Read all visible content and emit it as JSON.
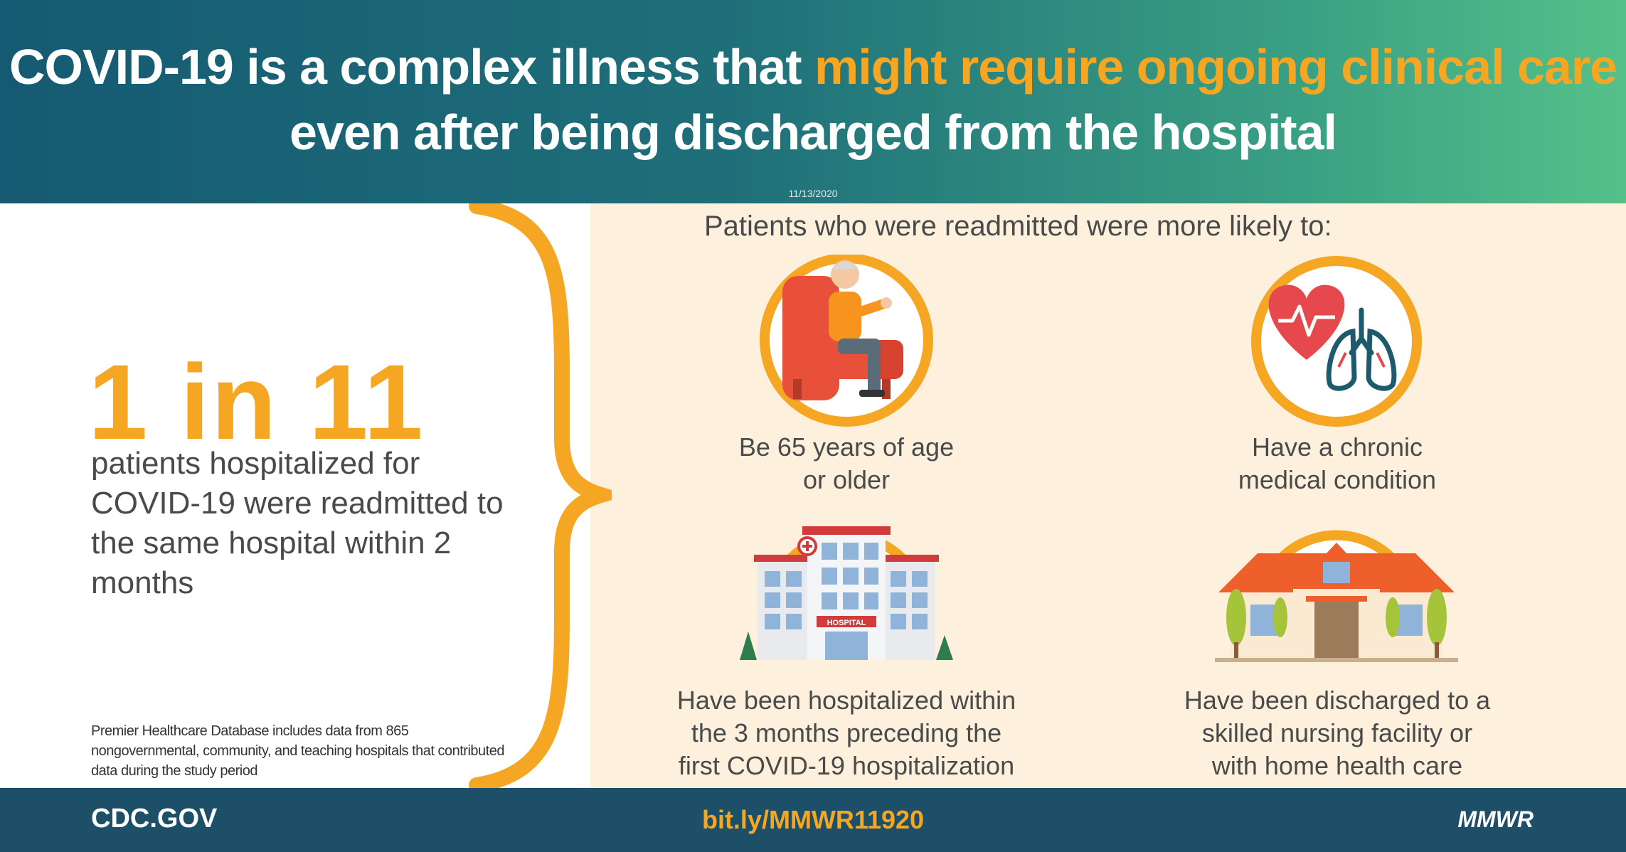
{
  "header": {
    "title_part1": "COVID-19 is a complex illness that ",
    "title_highlight": "might require ongoing clinical care",
    "title_part2": "even after being discharged from the hospital",
    "date": "11/13/2020"
  },
  "stat": {
    "value": "1 in 11",
    "description": "patients hospitalized for COVID-19 were readmitted to the same hospital within 2 months"
  },
  "footnote": "Premier Healthcare Database includes data from 865 nongovernmental, community, and teaching hospitals that contributed data during the study period",
  "risk_section": {
    "title": "Patients who were readmitted were more likely to:",
    "items": [
      {
        "label_line1": "Be 65 years of age",
        "label_line2": "or older",
        "icon": "elderly-person-icon"
      },
      {
        "label_line1": "Have a chronic",
        "label_line2": "medical condition",
        "icon": "heart-lungs-icon"
      },
      {
        "label_line1": "Have been hospitalized within",
        "label_line2": "the 3 months preceding the",
        "label_line3": "first COVID-19 hospitalization",
        "icon": "hospital-building-icon"
      },
      {
        "label_line1": "Have been discharged to a",
        "label_line2": "skilled nursing facility or",
        "label_line3": "with home health care",
        "icon": "house-icon"
      }
    ],
    "hospital_sign": "HOSPITAL"
  },
  "footer": {
    "left": "CDC.GOV",
    "center": "bit.ly/MMWR11920",
    "right": "MMWR"
  },
  "colors": {
    "accent": "#f5a623",
    "teal_dark": "#155a72",
    "teal_light": "#56c08a",
    "footer": "#1d4f68",
    "cream": "#fdf0dd",
    "text": "#4a4a4a"
  }
}
